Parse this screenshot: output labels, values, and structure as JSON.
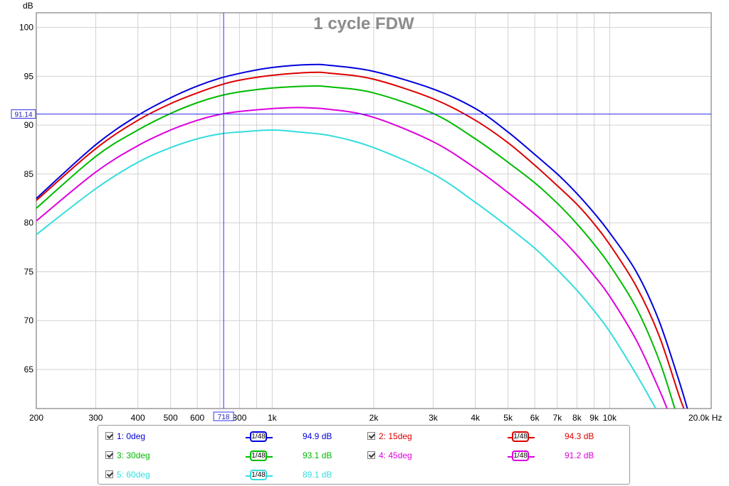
{
  "chart_data": {
    "type": "line",
    "title": "1 cycle FDW",
    "ylabel": "dB",
    "xunit": "Hz",
    "xscale": "log",
    "xlim": [
      200,
      20000
    ],
    "ylim": [
      61,
      101.5
    ],
    "grid": true,
    "x_tick_labels": [
      {
        "value": 200,
        "label": "200"
      },
      {
        "value": 300,
        "label": "300"
      },
      {
        "value": 400,
        "label": "400"
      },
      {
        "value": 500,
        "label": "500"
      },
      {
        "value": 600,
        "label": "600"
      },
      {
        "value": 800,
        "label": "800"
      },
      {
        "value": 1000,
        "label": "1k"
      },
      {
        "value": 2000,
        "label": "2k"
      },
      {
        "value": 3000,
        "label": "3k"
      },
      {
        "value": 4000,
        "label": "4k"
      },
      {
        "value": 5000,
        "label": "5k"
      },
      {
        "value": 6000,
        "label": "6k"
      },
      {
        "value": 7000,
        "label": "7k"
      },
      {
        "value": 8000,
        "label": "8k"
      },
      {
        "value": 9000,
        "label": "9k"
      },
      {
        "value": 10000,
        "label": "10k"
      },
      {
        "value": 20000,
        "label": "20.0k Hz"
      }
    ],
    "y_tick_labels": [
      {
        "value": 100,
        "label": "100"
      },
      {
        "value": 95,
        "label": "95"
      },
      {
        "value": 90,
        "label": "90"
      },
      {
        "value": 85,
        "label": "85"
      },
      {
        "value": 80,
        "label": "80"
      },
      {
        "value": 75,
        "label": "75"
      },
      {
        "value": 70,
        "label": "70"
      },
      {
        "value": 65,
        "label": "65"
      }
    ],
    "cursor": {
      "x": 718,
      "y": 91.14,
      "x_label": "718",
      "y_label": "91.14"
    },
    "series": [
      {
        "name": "1: 0deg",
        "color": "#0000dd",
        "smoothing": "1/48",
        "value": "94.9 dB",
        "points": [
          [
            200,
            82.5
          ],
          [
            300,
            88.0
          ],
          [
            400,
            91.0
          ],
          [
            500,
            92.8
          ],
          [
            600,
            94.0
          ],
          [
            700,
            94.8
          ],
          [
            800,
            95.3
          ],
          [
            1000,
            95.9
          ],
          [
            1300,
            96.2
          ],
          [
            1500,
            96.1
          ],
          [
            2000,
            95.5
          ],
          [
            3000,
            93.7
          ],
          [
            4000,
            91.7
          ],
          [
            5000,
            89.3
          ],
          [
            6000,
            87.0
          ],
          [
            7000,
            85.0
          ],
          [
            8000,
            83.0
          ],
          [
            9000,
            81.0
          ],
          [
            10000,
            79.0
          ],
          [
            12000,
            75.0
          ],
          [
            14000,
            70.0
          ],
          [
            16000,
            64.0
          ],
          [
            17000,
            61.0
          ]
        ]
      },
      {
        "name": "2: 15deg",
        "color": "#dd0000",
        "smoothing": "1/48",
        "value": "94.3 dB",
        "points": [
          [
            200,
            82.3
          ],
          [
            300,
            87.6
          ],
          [
            400,
            90.5
          ],
          [
            500,
            92.2
          ],
          [
            600,
            93.3
          ],
          [
            700,
            94.1
          ],
          [
            800,
            94.6
          ],
          [
            1000,
            95.1
          ],
          [
            1300,
            95.4
          ],
          [
            1500,
            95.3
          ],
          [
            2000,
            94.7
          ],
          [
            3000,
            92.7
          ],
          [
            4000,
            90.5
          ],
          [
            5000,
            88.2
          ],
          [
            6000,
            85.9
          ],
          [
            7000,
            83.8
          ],
          [
            8000,
            81.9
          ],
          [
            9000,
            79.9
          ],
          [
            10000,
            77.8
          ],
          [
            12000,
            73.5
          ],
          [
            14000,
            68.5
          ],
          [
            16000,
            62.5
          ],
          [
            16600,
            61.0
          ]
        ]
      },
      {
        "name": "3: 30deg",
        "color": "#00bb00",
        "smoothing": "1/48",
        "value": "93.1 dB",
        "points": [
          [
            200,
            81.5
          ],
          [
            300,
            86.8
          ],
          [
            400,
            89.5
          ],
          [
            500,
            91.2
          ],
          [
            600,
            92.3
          ],
          [
            700,
            93.0
          ],
          [
            800,
            93.4
          ],
          [
            1000,
            93.8
          ],
          [
            1300,
            94.0
          ],
          [
            1500,
            93.9
          ],
          [
            2000,
            93.3
          ],
          [
            3000,
            91.2
          ],
          [
            4000,
            88.6
          ],
          [
            5000,
            86.2
          ],
          [
            6000,
            84.1
          ],
          [
            7000,
            82.0
          ],
          [
            8000,
            79.9
          ],
          [
            9000,
            77.8
          ],
          [
            10000,
            75.7
          ],
          [
            12000,
            71.3
          ],
          [
            14000,
            66.0
          ],
          [
            15600,
            61.0
          ]
        ]
      },
      {
        "name": "4: 45deg",
        "color": "#dd00dd",
        "smoothing": "1/48",
        "value": "91.2 dB",
        "points": [
          [
            200,
            80.2
          ],
          [
            300,
            85.2
          ],
          [
            400,
            87.9
          ],
          [
            500,
            89.5
          ],
          [
            600,
            90.5
          ],
          [
            700,
            91.1
          ],
          [
            800,
            91.4
          ],
          [
            1000,
            91.7
          ],
          [
            1200,
            91.8
          ],
          [
            1500,
            91.6
          ],
          [
            2000,
            90.8
          ],
          [
            3000,
            88.3
          ],
          [
            4000,
            85.6
          ],
          [
            5000,
            83.1
          ],
          [
            6000,
            80.9
          ],
          [
            7000,
            78.8
          ],
          [
            8000,
            76.7
          ],
          [
            9000,
            74.6
          ],
          [
            10000,
            72.5
          ],
          [
            12000,
            68.0
          ],
          [
            14000,
            63.0
          ],
          [
            14800,
            61.0
          ]
        ]
      },
      {
        "name": "5: 60deg",
        "color": "#33dddd",
        "smoothing": "1/48",
        "value": "89.1 dB",
        "points": [
          [
            200,
            78.8
          ],
          [
            300,
            83.5
          ],
          [
            400,
            86.2
          ],
          [
            500,
            87.7
          ],
          [
            600,
            88.6
          ],
          [
            700,
            89.1
          ],
          [
            800,
            89.3
          ],
          [
            1000,
            89.5
          ],
          [
            1200,
            89.3
          ],
          [
            1500,
            88.9
          ],
          [
            2000,
            87.7
          ],
          [
            3000,
            85.0
          ],
          [
            4000,
            82.1
          ],
          [
            5000,
            79.6
          ],
          [
            6000,
            77.4
          ],
          [
            7000,
            75.2
          ],
          [
            8000,
            73.1
          ],
          [
            9000,
            71.0
          ],
          [
            10000,
            68.9
          ],
          [
            12000,
            64.5
          ],
          [
            13700,
            61.0
          ]
        ]
      }
    ]
  }
}
